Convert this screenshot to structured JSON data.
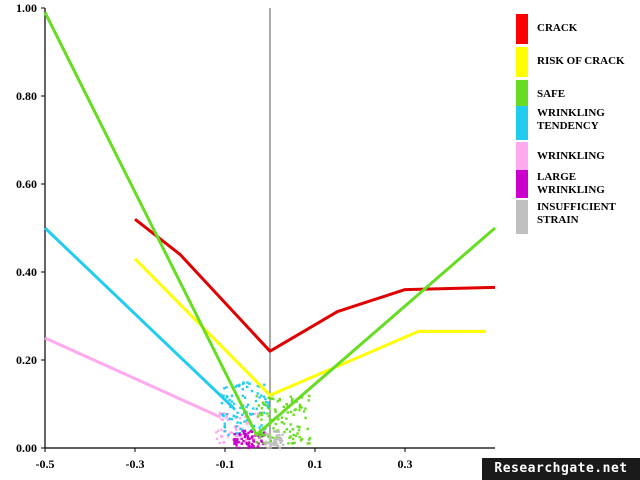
{
  "chart_data": {
    "type": "line",
    "xlim": [
      -0.5,
      0.5
    ],
    "ylim": [
      0,
      1.0
    ],
    "x_ticks": [
      "-0.5",
      "-0.3",
      "-0.1",
      "0.1",
      "0.3"
    ],
    "x_tick_values": [
      -0.5,
      -0.3,
      -0.1,
      0.1,
      0.3
    ],
    "y_ticks": [
      "0.00",
      "0.20",
      "0.40",
      "0.60",
      "0.80",
      "1.00"
    ],
    "y_tick_values": [
      0,
      0.2,
      0.4,
      0.6,
      0.8,
      1.0
    ],
    "grid": false,
    "legend_position": "right",
    "legend": [
      {
        "label": [
          "CRACK"
        ],
        "color": "#ff0000"
      },
      {
        "label": [
          "RISK OF CRACK"
        ],
        "color": "#ffff00"
      },
      {
        "label": [
          "SAFE"
        ],
        "color": "#66dd22"
      },
      {
        "label": [
          "WRINKLING",
          "TENDENCY"
        ],
        "color": "#22ccee"
      },
      {
        "label": [
          "WRINKLING"
        ],
        "color": "#ffaaee"
      },
      {
        "label": [
          "LARGE",
          "WRINKLING"
        ],
        "color": "#cc00cc"
      },
      {
        "label": [
          "INSUFFICIENT",
          "STRAIN"
        ],
        "color": "#c0c0c0"
      }
    ],
    "series": [
      {
        "color": "#e00000",
        "x": [
          -0.3,
          -0.2,
          0.0,
          0.15,
          0.3,
          0.5
        ],
        "y": [
          0.52,
          0.44,
          0.22,
          0.31,
          0.36,
          0.365
        ]
      },
      {
        "color": "#ffff00",
        "x": [
          -0.3,
          0.0,
          0.33,
          0.48
        ],
        "y": [
          0.43,
          0.12,
          0.265,
          0.265
        ]
      },
      {
        "color": "#66dd22",
        "x": [
          -0.5,
          -0.03,
          0.5
        ],
        "y": [
          0.99,
          0.03,
          0.5
        ]
      },
      {
        "color": "#22ccee",
        "x": [
          -0.5,
          -0.08
        ],
        "y": [
          0.5,
          0.09
        ]
      },
      {
        "color": "#ffaaee",
        "x": [
          -0.5,
          -0.11
        ],
        "y": [
          0.25,
          0.07
        ]
      }
    ],
    "scatter": [
      {
        "color": "#ffaaee",
        "x_range": [
          -0.12,
          -0.02
        ],
        "y_range": [
          0.01,
          0.08
        ],
        "count": 60
      },
      {
        "color": "#22ccee",
        "x_range": [
          -0.11,
          0.0
        ],
        "y_range": [
          0.03,
          0.15
        ],
        "count": 90
      },
      {
        "color": "#cc00cc",
        "x_range": [
          -0.08,
          -0.01
        ],
        "y_range": [
          0.0,
          0.04
        ],
        "count": 70
      },
      {
        "color": "#66dd22",
        "x_range": [
          -0.03,
          0.09
        ],
        "y_range": [
          0.01,
          0.12
        ],
        "count": 110
      },
      {
        "color": "#c0c0c0",
        "x_range": [
          -0.01,
          0.03
        ],
        "y_range": [
          0.0,
          0.04
        ],
        "count": 40
      }
    ]
  },
  "watermark": "Researchgate.net"
}
